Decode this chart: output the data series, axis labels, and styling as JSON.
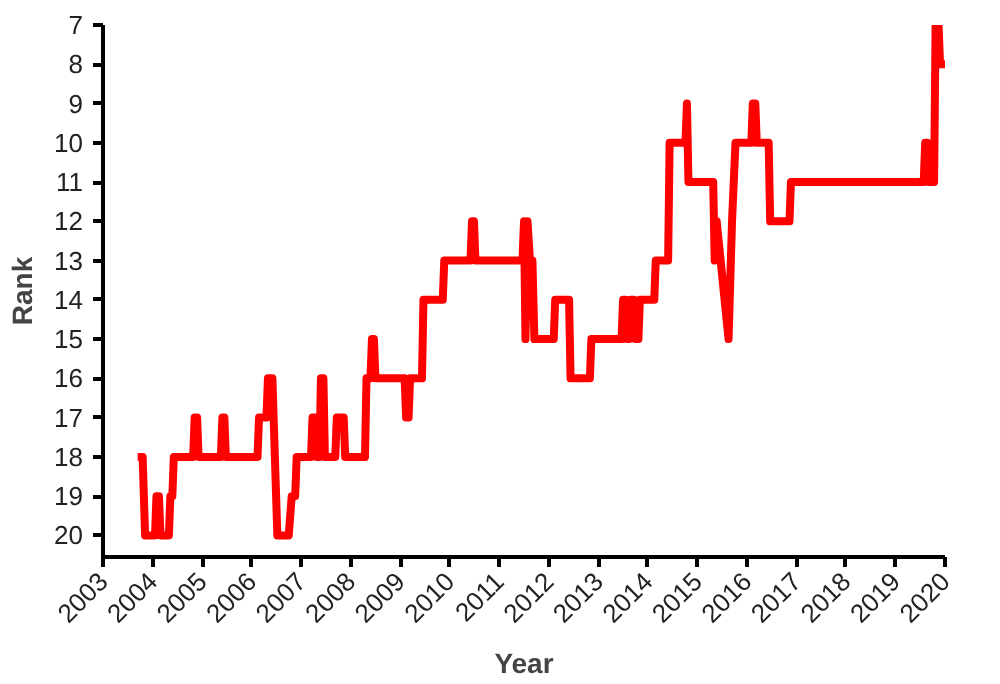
{
  "chart_data": {
    "type": "line",
    "xlabel": "Year",
    "ylabel": "Rank",
    "x": [
      2003.7,
      2003.8,
      2003.85,
      2004.05,
      2004.08,
      2004.13,
      2004.16,
      2004.33,
      2004.36,
      2004.4,
      2004.43,
      2004.82,
      2004.85,
      2004.9,
      2004.93,
      2005.38,
      2005.41,
      2005.45,
      2005.48,
      2006.12,
      2006.15,
      2006.3,
      2006.33,
      2006.42,
      2006.52,
      2006.75,
      2006.81,
      2006.88,
      2006.91,
      2007.2,
      2007.23,
      2007.28,
      2007.31,
      2007.37,
      2007.4,
      2007.45,
      2007.48,
      2007.69,
      2007.72,
      2007.86,
      2007.89,
      2008.29,
      2008.32,
      2008.4,
      2008.43,
      2008.47,
      2008.5,
      2009.09,
      2009.12,
      2009.17,
      2009.2,
      2009.44,
      2009.47,
      2009.86,
      2009.89,
      2010.42,
      2010.45,
      2010.49,
      2010.52,
      2011.47,
      2011.5,
      2011.53,
      2011.57,
      2011.62,
      2011.67,
      2011.71,
      2012.1,
      2012.13,
      2012.41,
      2012.44,
      2012.83,
      2012.86,
      2013.47,
      2013.5,
      2013.55,
      2013.58,
      2013.62,
      2013.65,
      2013.72,
      2013.75,
      2013.81,
      2013.84,
      2014.13,
      2014.16,
      2014.41,
      2014.44,
      2014.76,
      2014.79,
      2014.82,
      2015.32,
      2015.35,
      2015.39,
      2015.63,
      2015.7,
      2015.77,
      2016.09,
      2016.12,
      2016.17,
      2016.2,
      2016.44,
      2016.47,
      2016.86,
      2016.89,
      2019.57,
      2019.6,
      2019.64,
      2019.67,
      2019.78,
      2019.81,
      2019.87,
      2019.9,
      2020.0
    ],
    "series": [
      {
        "color": "#ff0000",
        "values": [
          18,
          18,
          20,
          20,
          19,
          19,
          20,
          20,
          19,
          19,
          18,
          18,
          17,
          17,
          18,
          18,
          17,
          17,
          18,
          18,
          17,
          17,
          16,
          16,
          20,
          20,
          19,
          19,
          18,
          18,
          17,
          17,
          18,
          18,
          16,
          16,
          18,
          18,
          17,
          17,
          18,
          18,
          16,
          16,
          15,
          15,
          16,
          16,
          17,
          17,
          16,
          16,
          14,
          14,
          13,
          13,
          12,
          12,
          13,
          13,
          12,
          15,
          12,
          13,
          13,
          15,
          15,
          14,
          14,
          16,
          16,
          15,
          15,
          14,
          14,
          15,
          15,
          14,
          14,
          15,
          15,
          14,
          14,
          13,
          13,
          10,
          10,
          9,
          11,
          11,
          13,
          12,
          15,
          12,
          10,
          10,
          9,
          9,
          10,
          10,
          12,
          12,
          11,
          11,
          10,
          10,
          11,
          11,
          7,
          7,
          8,
          8
        ]
      }
    ],
    "xlim": [
      2003,
      2020
    ],
    "xticks": [
      2003,
      2004,
      2005,
      2006,
      2007,
      2008,
      2009,
      2010,
      2011,
      2012,
      2013,
      2014,
      2015,
      2016,
      2017,
      2018,
      2019,
      2020
    ],
    "ylim": [
      20.55,
      7
    ],
    "yticks": [
      7,
      8,
      9,
      10,
      11,
      12,
      13,
      14,
      15,
      16,
      17,
      18,
      19,
      20
    ],
    "grid": false
  }
}
